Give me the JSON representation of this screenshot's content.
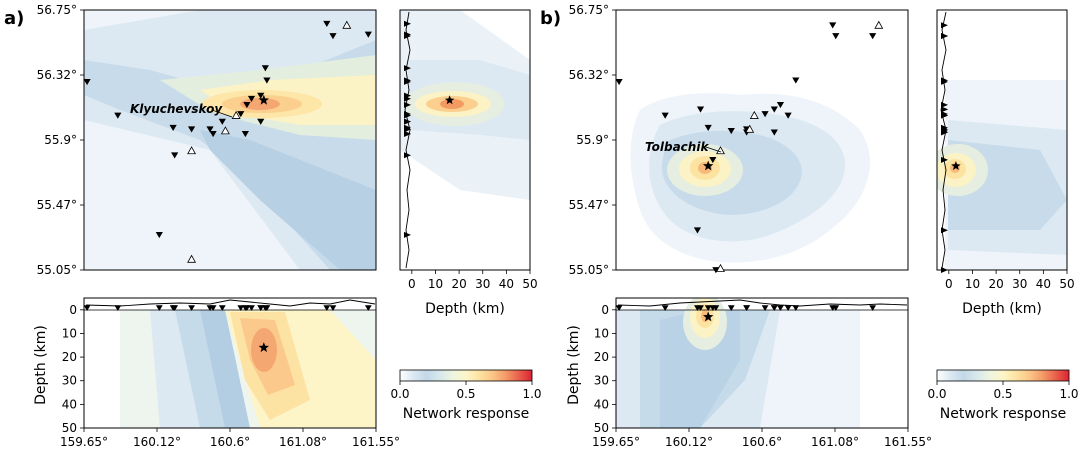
{
  "colors": {
    "scale": [
      "#ffffff",
      "#dce9f2",
      "#c6dbea",
      "#b0cbe0",
      "#e7f1e9",
      "#fbf6cf",
      "#fde6a8",
      "#fbcf8e",
      "#f5a772",
      "#ea6a4f",
      "#df2a36"
    ],
    "triangle_fill": "#ffffff",
    "marker": "#000000"
  },
  "colorbar": {
    "label": "Network response",
    "ticks": [
      "0.0",
      "0.5",
      "1.0"
    ]
  },
  "chart_data": [
    {
      "panel": "a)",
      "type": "heatmap",
      "volcano_label": "Klyuchevskoy",
      "map": {
        "xlim": [
          159.65,
          161.55
        ],
        "ylim": [
          55.05,
          56.75
        ],
        "x_ticks": [
          "159.65°",
          "160.12°",
          "160.6°",
          "161.08°",
          "161.55°"
        ],
        "y_ticks": [
          "56.75°",
          "56.32°",
          "55.9°",
          "55.47°",
          "55.05°"
        ],
        "event": [
          160.82,
          56.16
        ],
        "volcanoes": [
          [
            160.64,
            56.06
          ],
          [
            160.57,
            55.96
          ],
          [
            160.35,
            55.83
          ],
          [
            161.36,
            56.65
          ],
          [
            160.35,
            55.12
          ]
        ],
        "stations": [
          [
            159.67,
            56.28
          ],
          [
            159.87,
            56.06
          ],
          [
            160.23,
            55.98
          ],
          [
            160.24,
            55.8
          ],
          [
            160.35,
            55.97
          ],
          [
            160.47,
            55.97
          ],
          [
            160.49,
            55.94
          ],
          [
            160.55,
            56.02
          ],
          [
            160.67,
            56.07
          ],
          [
            160.71,
            56.13
          ],
          [
            160.74,
            56.17
          ],
          [
            160.8,
            56.19
          ],
          [
            160.7,
            55.94
          ],
          [
            160.8,
            56.02
          ],
          [
            160.84,
            56.29
          ],
          [
            160.83,
            56.37
          ],
          [
            161.23,
            56.66
          ],
          [
            161.27,
            56.58
          ],
          [
            161.5,
            56.59
          ],
          [
            160.14,
            55.28
          ]
        ]
      },
      "depth_section": {
        "x_label": "Depth (km)",
        "xlim": [
          -5,
          50
        ],
        "x_ticks": [
          "0",
          "10",
          "20",
          "30",
          "40",
          "50"
        ],
        "event": [
          16,
          56.16
        ]
      },
      "lon_section": {
        "y_label": "Depth (km)",
        "ylim": [
          -5,
          50
        ],
        "y_ticks": [
          "0",
          "10",
          "20",
          "30",
          "40",
          "50"
        ],
        "event": [
          160.82,
          16
        ]
      }
    },
    {
      "panel": "b)",
      "type": "heatmap",
      "volcano_label": "Tolbachik",
      "map": {
        "xlim": [
          159.65,
          161.55
        ],
        "ylim": [
          55.05,
          56.75
        ],
        "x_ticks": [
          "159.65°",
          "160.12°",
          "160.6°",
          "161.08°",
          "161.55°"
        ],
        "y_ticks": [
          "56.75°",
          "56.32°",
          "55.9°",
          "55.47°",
          "55.05°"
        ],
        "event": [
          160.25,
          55.73
        ],
        "volcanoes": [
          [
            160.33,
            55.83
          ],
          [
            160.55,
            56.06
          ],
          [
            160.52,
            55.97
          ],
          [
            161.36,
            56.65
          ],
          [
            160.33,
            55.06
          ]
        ],
        "stations": [
          [
            159.67,
            56.28
          ],
          [
            159.97,
            56.06
          ],
          [
            160.2,
            56.1
          ],
          [
            160.25,
            55.98
          ],
          [
            160.28,
            55.77
          ],
          [
            160.4,
            55.96
          ],
          [
            160.5,
            55.97
          ],
          [
            160.5,
            55.95
          ],
          [
            160.62,
            56.07
          ],
          [
            160.68,
            56.1
          ],
          [
            160.72,
            56.13
          ],
          [
            160.77,
            56.06
          ],
          [
            160.68,
            55.95
          ],
          [
            160.82,
            56.29
          ],
          [
            161.06,
            56.65
          ],
          [
            161.08,
            56.58
          ],
          [
            161.32,
            56.58
          ],
          [
            160.18,
            55.31
          ],
          [
            160.3,
            55.05
          ]
        ]
      },
      "depth_section": {
        "x_label": "Depth (km)",
        "xlim": [
          -5,
          50
        ],
        "x_ticks": [
          "0",
          "10",
          "20",
          "30",
          "40",
          "50"
        ],
        "event": [
          3,
          55.73
        ]
      },
      "lon_section": {
        "y_label": "Depth (km)",
        "ylim": [
          -5,
          50
        ],
        "y_ticks": [
          "0",
          "10",
          "20",
          "30",
          "40",
          "50"
        ],
        "event": [
          160.25,
          3
        ]
      }
    }
  ]
}
